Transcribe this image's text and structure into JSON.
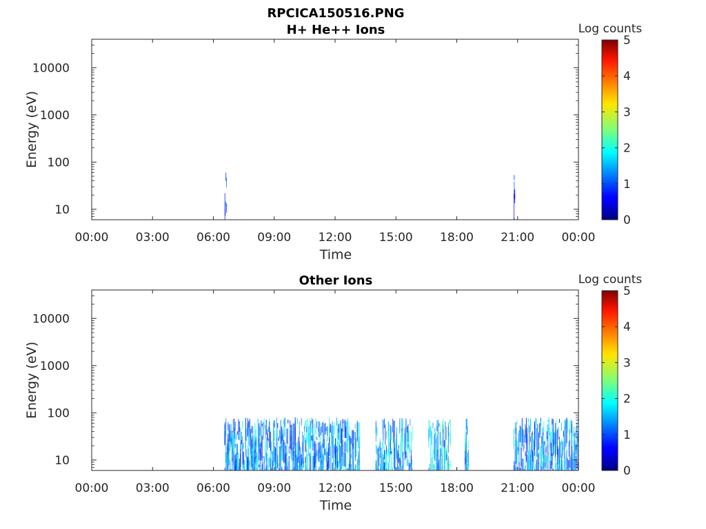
{
  "figure": {
    "title": "RPCICA150516.PNG"
  },
  "chart_data": [
    {
      "type": "heatmap",
      "title": "H+ He++ Ions",
      "xlabel": "Time",
      "ylabel": "Energy (eV)",
      "x_tick_labels": [
        "00:00",
        "03:00",
        "06:00",
        "09:00",
        "12:00",
        "15:00",
        "18:00",
        "21:00",
        "00:00"
      ],
      "x_range_hours": [
        0,
        24
      ],
      "y_scale": "log",
      "y_tick_labels": [
        "10",
        "100",
        "1000",
        "10000"
      ],
      "y_range": [
        6,
        40000
      ],
      "colorbar": {
        "label": "Log counts",
        "range": [
          0,
          5
        ],
        "ticks": [
          "0",
          "1",
          "2",
          "3",
          "4",
          "5"
        ],
        "colormap": "jet"
      },
      "activity_intervals": [
        {
          "start_hour": 6.55,
          "end_hour": 6.65,
          "max_energy_ev": 80,
          "level": 0.6
        },
        {
          "start_hour": 20.8,
          "end_hour": 20.85,
          "max_energy_ev": 80,
          "level": 0.5
        }
      ]
    },
    {
      "type": "heatmap",
      "title": "Other Ions",
      "xlabel": "Time",
      "ylabel": "Energy (eV)",
      "x_tick_labels": [
        "00:00",
        "03:00",
        "06:00",
        "09:00",
        "12:00",
        "15:00",
        "18:00",
        "21:00",
        "00:00"
      ],
      "x_range_hours": [
        0,
        24
      ],
      "y_scale": "log",
      "y_tick_labels": [
        "10",
        "100",
        "1000",
        "10000"
      ],
      "y_range": [
        6,
        40000
      ],
      "colorbar": {
        "label": "Log counts",
        "range": [
          0,
          5
        ],
        "ticks": [
          "0",
          "1",
          "2",
          "3",
          "4",
          "5"
        ],
        "colormap": "jet"
      },
      "activity_intervals": [
        {
          "start_hour": 6.55,
          "end_hour": 13.2,
          "max_energy_ev": 80,
          "level": 1.3
        },
        {
          "start_hour": 14.0,
          "end_hour": 15.8,
          "max_energy_ev": 80,
          "level": 1.4
        },
        {
          "start_hour": 16.6,
          "end_hour": 17.7,
          "max_energy_ev": 80,
          "level": 1.6
        },
        {
          "start_hour": 18.4,
          "end_hour": 18.6,
          "max_energy_ev": 80,
          "level": 1.5
        },
        {
          "start_hour": 20.8,
          "end_hour": 24.0,
          "max_energy_ev": 80,
          "level": 1.3
        }
      ]
    }
  ]
}
